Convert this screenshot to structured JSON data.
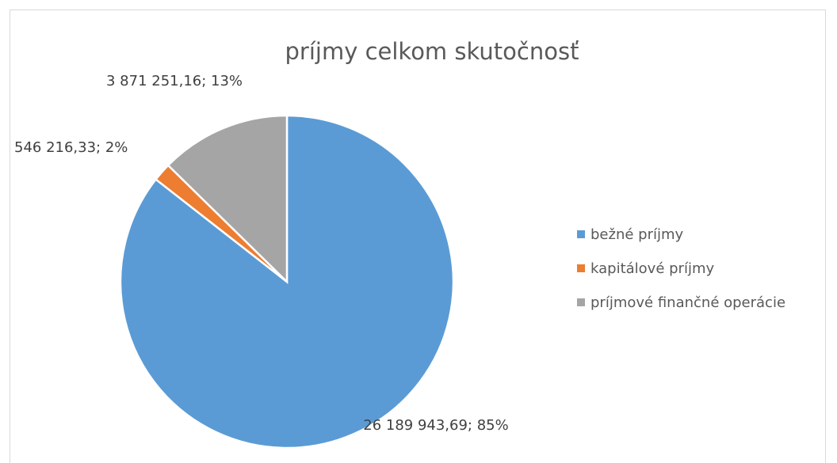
{
  "chart_data": {
    "type": "pie",
    "title": "príjmy celkom skutočnosť",
    "categories": [
      "bežné príjmy",
      "kapitálové príjmy",
      "príjmové finančné operácie"
    ],
    "values": [
      26189943.69,
      546216.33,
      3871251.16
    ],
    "value_labels": [
      "26 189 943,69; 85%",
      "546 216,33; 2%",
      "3 871 251,16; 13%"
    ],
    "colors": [
      "#5b9bd5",
      "#ed7d31",
      "#a5a5a5"
    ],
    "legend": "right"
  }
}
